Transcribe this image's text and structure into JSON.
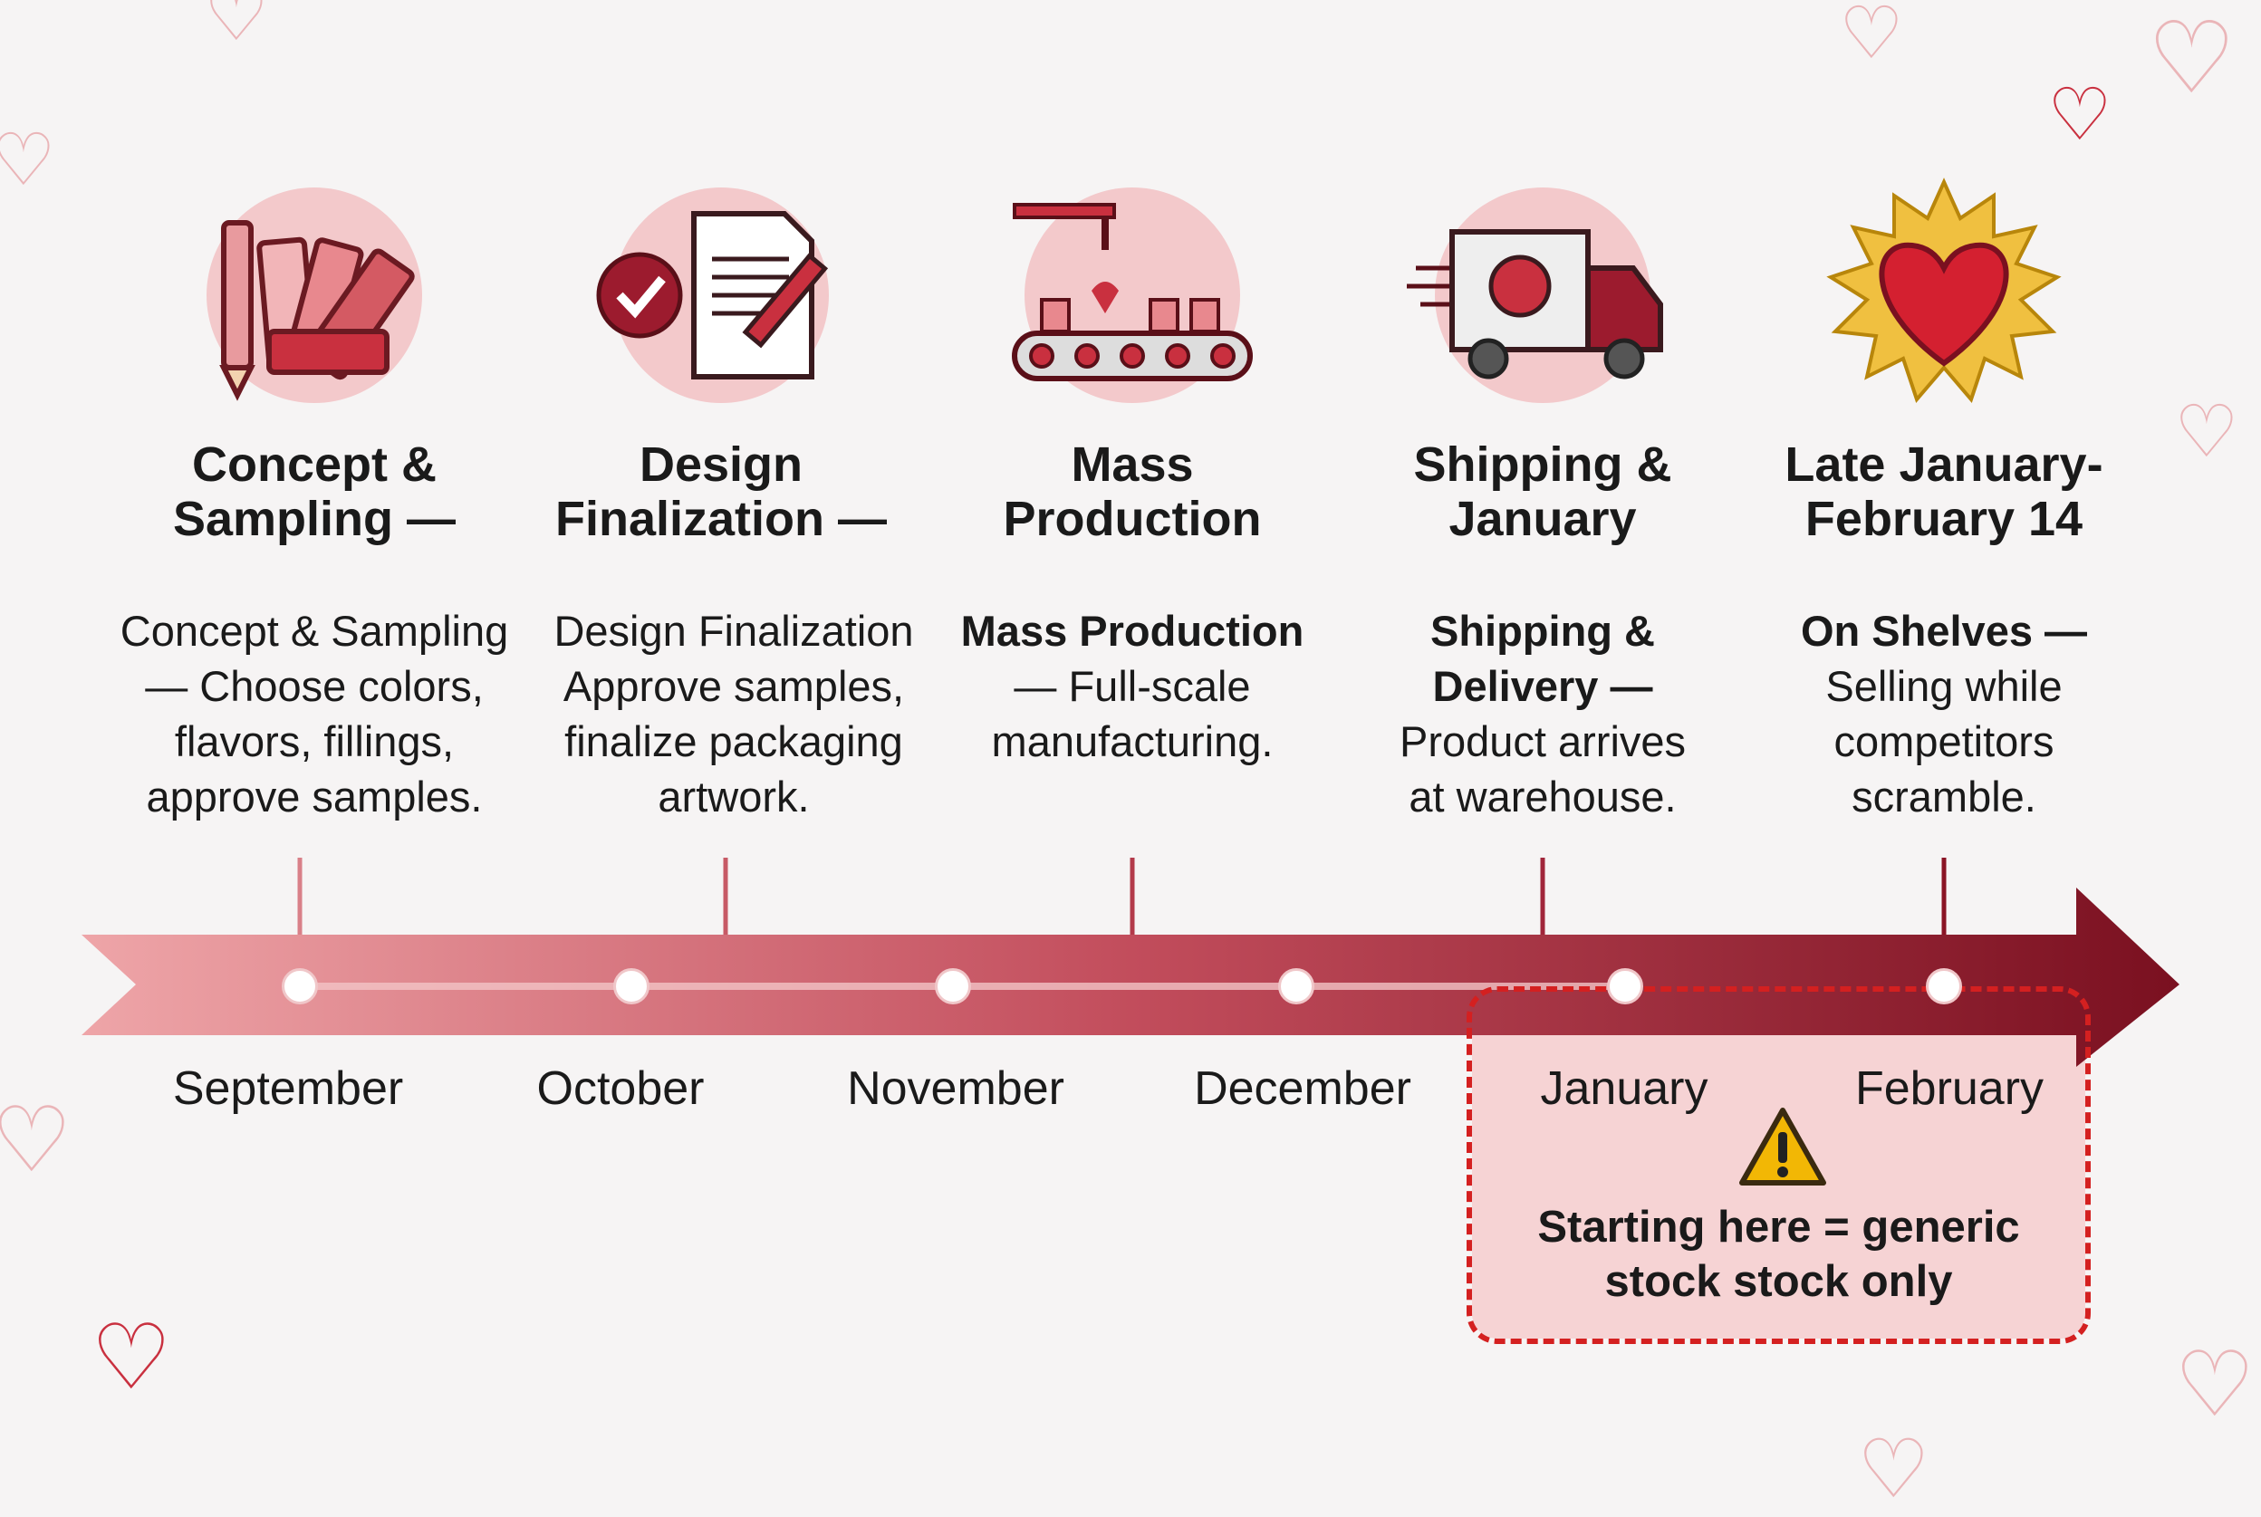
{
  "colors": {
    "background": "#f6f4f4",
    "arrow_start": "#eea5a8",
    "arrow_end": "#7a1020",
    "accent": "#a1263a",
    "warning_border": "#d42020",
    "warning_fill": "#f6d3d4",
    "warning_icon": "#f2b705"
  },
  "stages": [
    {
      "icon": "color-swatch-pencil-icon",
      "title": "Concept &\nSampling —",
      "desc_bold": "",
      "desc_text": "Concept & Sampling\n— Choose colors,\nflavors, fillings,\napprove samples."
    },
    {
      "icon": "document-signature-check-icon",
      "title": "Design\nFinalization —",
      "desc_bold": "",
      "desc_text": "Design Finalization\nApprove samples,\nfinalize packaging\nartwork."
    },
    {
      "icon": "conveyor-factory-icon",
      "title": "Mass\nProduction",
      "desc_bold": "Mass Production",
      "desc_text": "\n— Full-scale\nmanufacturing."
    },
    {
      "icon": "delivery-truck-globe-icon",
      "title": "Shipping &\nJanuary",
      "desc_bold": "Shipping &\nDelivery —",
      "desc_text": "\nProduct arrives\nat warehouse."
    },
    {
      "icon": "heart-burst-icon",
      "title": "Late January-\nFebruary 14",
      "desc_bold": "On Shelves —",
      "desc_text": "\nSelling while\ncompetitors\nscramble."
    }
  ],
  "months": [
    "September",
    "October",
    "November",
    "December",
    "January",
    "February"
  ],
  "warning": {
    "icon": "warning-triangle-icon",
    "text": "Starting here = generic\nstock stock only"
  }
}
